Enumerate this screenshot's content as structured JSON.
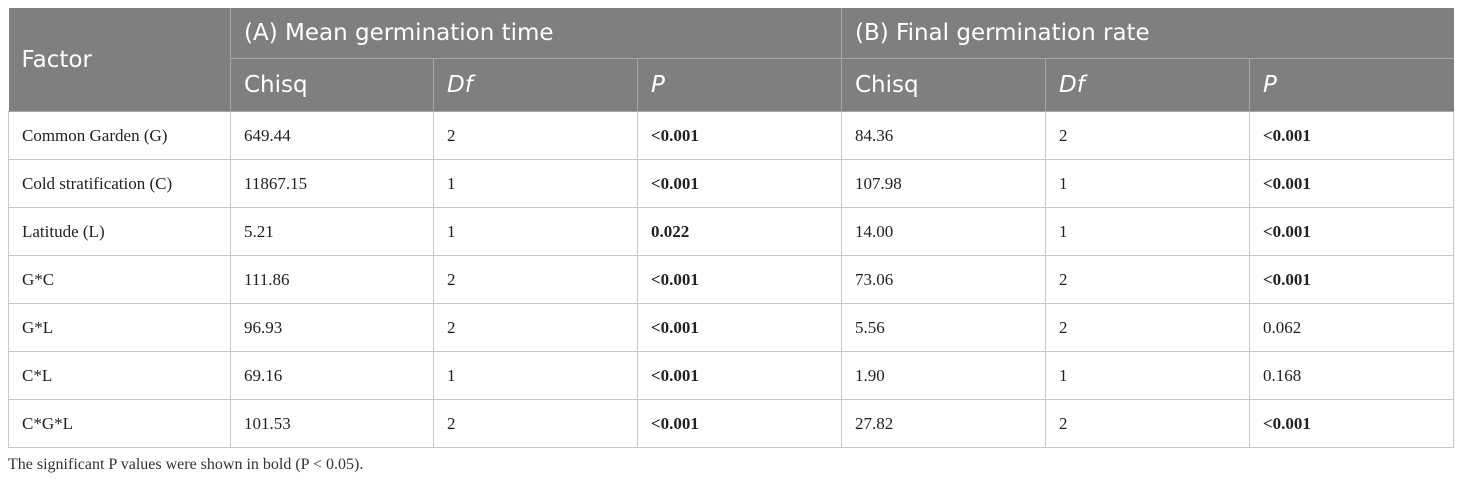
{
  "header": {
    "factor": "Factor",
    "group_a": "(A) Mean germination time",
    "group_b": "(B) Final germination rate",
    "columns": [
      "Chisq",
      "Df",
      "P",
      "Chisq",
      "Df",
      "P"
    ]
  },
  "rows": [
    {
      "factor": "Common Garden (G)",
      "a_chisq": "649.44",
      "a_df": "2",
      "a_p": "<0.001",
      "b_chisq": "84.36",
      "b_df": "2",
      "b_p": "<0.001"
    },
    {
      "factor": "Cold stratification (C)",
      "a_chisq": "11867.15",
      "a_df": "1",
      "a_p": "<0.001",
      "b_chisq": "107.98",
      "b_df": "1",
      "b_p": "<0.001"
    },
    {
      "factor": "Latitude (L)",
      "a_chisq": "5.21",
      "a_df": "1",
      "a_p": "0.022",
      "b_chisq": "14.00",
      "b_df": "1",
      "b_p": "<0.001"
    },
    {
      "factor": "G*C",
      "a_chisq": "111.86",
      "a_df": "2",
      "a_p": "<0.001",
      "b_chisq": "73.06",
      "b_df": "2",
      "b_p": "<0.001"
    },
    {
      "factor": "G*L",
      "a_chisq": "96.93",
      "a_df": "2",
      "a_p": "<0.001",
      "b_chisq": "5.56",
      "b_df": "2",
      "b_p": "0.062"
    },
    {
      "factor": "C*L",
      "a_chisq": "69.16",
      "a_df": "1",
      "a_p": "<0.001",
      "b_chisq": "1.90",
      "b_df": "1",
      "b_p": "0.168"
    },
    {
      "factor": "C*G*L",
      "a_chisq": "101.53",
      "a_df": "2",
      "a_p": "<0.001",
      "b_chisq": "27.82",
      "b_df": "2",
      "b_p": "<0.001"
    }
  ],
  "footnote": "The significant P values were shown in bold (P < 0.05)."
}
